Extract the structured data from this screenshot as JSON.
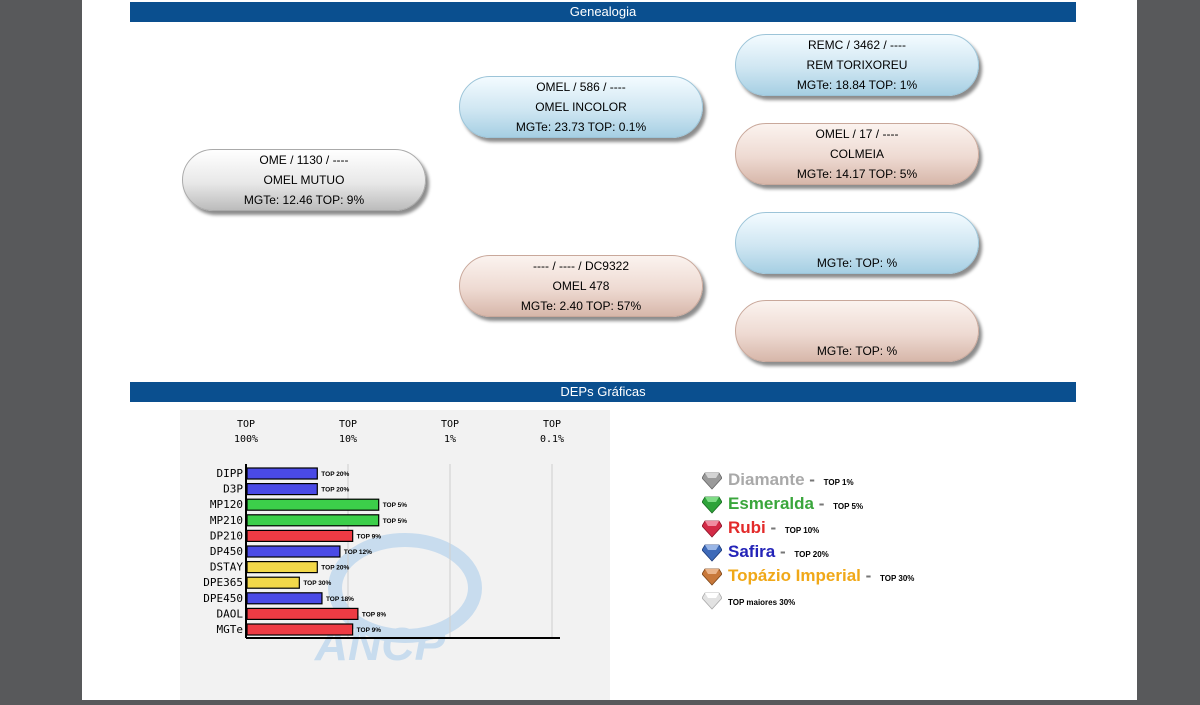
{
  "sections": {
    "genealogy_title": "Genealogia",
    "deps_title": "DEPs Gráficas"
  },
  "genealogy": {
    "root": {
      "line1": "OME / 1130 / ----",
      "line2": "OMEL MUTUO",
      "line3": "MGTe: 12.46   TOP: 9%"
    },
    "sire": {
      "line1": "OMEL / 586 / ----",
      "line2": "OMEL INCOLOR",
      "line3": "MGTe: 23.73   TOP: 0.1%"
    },
    "dam": {
      "line1": "---- / ---- / DC9322",
      "line2": "OMEL 478",
      "line3": "MGTe: 2.40   TOP: 57%"
    },
    "sire_sire": {
      "line1": "REMC / 3462 / ----",
      "line2": "REM TORIXOREU",
      "line3": "MGTe: 18.84   TOP: 1%"
    },
    "sire_dam": {
      "line1": "OMEL / 17 / ----",
      "line2": "COLMEIA",
      "line3": "MGTe: 14.17   TOP: 5%"
    },
    "dam_sire": {
      "line1": "",
      "line2": "",
      "line3": "MGTe:    TOP: %"
    },
    "dam_dam": {
      "line1": "",
      "line2": "",
      "line3": "MGTe:    TOP: %"
    }
  },
  "chart_data": {
    "type": "bar",
    "orientation": "horizontal",
    "x_axis_ticks": [
      {
        "line1": "TOP",
        "line2": "100%"
      },
      {
        "line1": "TOP",
        "line2": "10%"
      },
      {
        "line1": "TOP",
        "line2": "1%"
      },
      {
        "line1": "TOP",
        "line2": "0.1%"
      }
    ],
    "scale": "log (TOP percentile)",
    "categories": [
      "DIPP",
      "D3P",
      "MP120",
      "MP210",
      "DP210",
      "DP450",
      "DSTAY",
      "DPE365",
      "DPE450",
      "DAOL",
      "MGTe"
    ],
    "values_top_pct": [
      20,
      20,
      5,
      5,
      9,
      12,
      20,
      30,
      18,
      8,
      9
    ],
    "labels": [
      "TOP 20%",
      "TOP 20%",
      "TOP 5%",
      "TOP 5%",
      "TOP 9%",
      "TOP 12%",
      "TOP 20%",
      "TOP 30%",
      "TOP 18%",
      "TOP 8%",
      "TOP 9%"
    ],
    "colors": [
      "#4a4ae6",
      "#4a4ae6",
      "#3ccf4a",
      "#3ccf4a",
      "#ee3b44",
      "#4a4ae6",
      "#f2d84a",
      "#f2d84a",
      "#4a4ae6",
      "#ee3b44",
      "#ee3b44"
    ],
    "watermark": "ANCP",
    "grid": true,
    "legend": "right"
  },
  "legend": [
    {
      "name": "Diamante",
      "dash": " - ",
      "top": "TOP 1%",
      "color": "#a9a9a9",
      "icon": "diamond-gem-icon",
      "gem_color": "#9a9a9a"
    },
    {
      "name": "Esmeralda",
      "dash": " - ",
      "top": "TOP 5%",
      "color": "#3aa63c",
      "icon": "emerald-gem-icon",
      "gem_color": "#2ea33a"
    },
    {
      "name": "Rubi",
      "dash": " - ",
      "top": "TOP 10%",
      "color": "#e32a2a",
      "icon": "ruby-gem-icon",
      "gem_color": "#d32a46"
    },
    {
      "name": "Safira",
      "dash": " - ",
      "top": "TOP 20%",
      "color": "#2424b8",
      "icon": "sapphire-gem-icon",
      "gem_color": "#3e6ab8"
    },
    {
      "name": "Topázio Imperial",
      "dash": " - ",
      "top": "TOP 30%",
      "color": "#f0a818",
      "icon": "topaz-gem-icon",
      "gem_color": "#c8783a"
    },
    {
      "name": "",
      "dash": "",
      "top": "TOP maiores 30%",
      "color": "#000000",
      "icon": "clear-gem-icon",
      "gem_color": "#e2e2e2"
    }
  ]
}
